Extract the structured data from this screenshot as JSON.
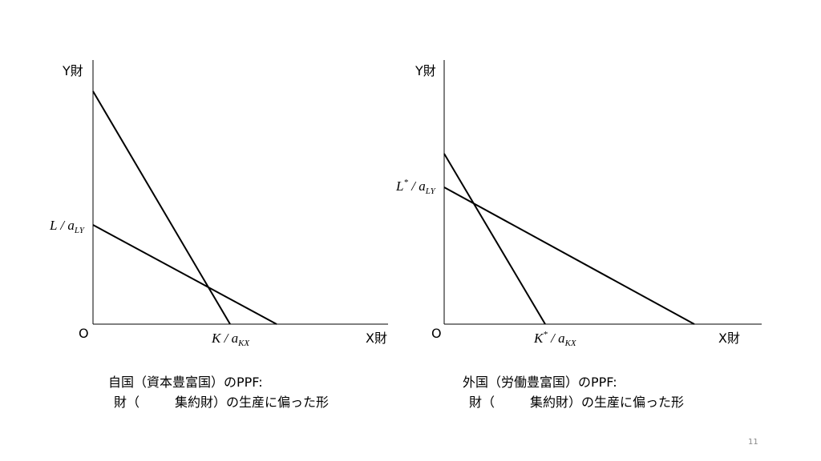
{
  "slide": {
    "panels": [
      {
        "y_axis": "Y財",
        "x_axis": "X財",
        "origin": "O",
        "y_intercept": {
          "var": "L",
          "star": null,
          "sep": " / a",
          "sub": "LY"
        },
        "x_intercept": {
          "var": "K",
          "star": null,
          "sep": " / a",
          "sub": "KX"
        },
        "caption": {
          "line1": "自国（資本豊富国）のPPF:",
          "line2a": "財（",
          "line2b": "集約財）の生産に偏った形"
        }
      },
      {
        "y_axis": "Y財",
        "x_axis": "X財",
        "origin": "O",
        "y_intercept": {
          "var": "L",
          "star": "*",
          "sep": " / a",
          "sub": "LY"
        },
        "x_intercept": {
          "var": "K",
          "star": "*",
          "sep": " / a",
          "sub": "KX"
        },
        "caption": {
          "line1": "外国（労働豊富国）のPPF:",
          "line2a": "財（",
          "line2b": "集約財）の生産に偏った形"
        }
      }
    ],
    "page_number": "11"
  }
}
